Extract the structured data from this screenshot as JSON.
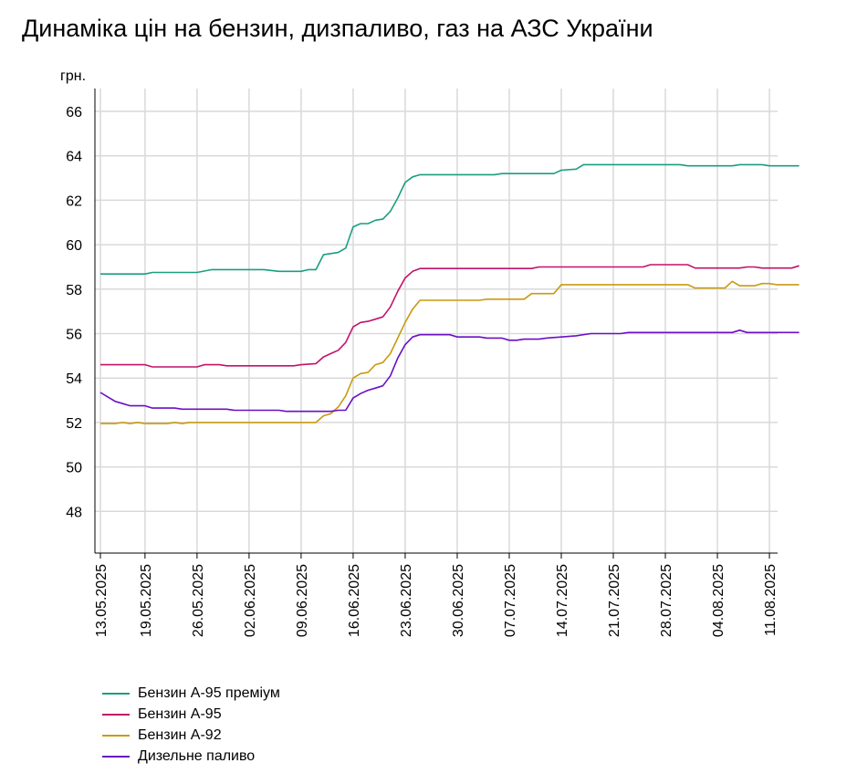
{
  "title": "Динаміка цін на бензин, дизпаливо, газ на АЗС України",
  "chart_data": {
    "type": "line",
    "title": "Динаміка цін на бензин, дизпаливо, газ на АЗС України",
    "ylabel": "грн.",
    "xlabel": "",
    "ylim": [
      46,
      67
    ],
    "yticks": [
      48,
      50,
      52,
      54,
      56,
      58,
      60,
      62,
      64,
      66
    ],
    "xlim": [
      "2025-05-13",
      "2025-08-16"
    ],
    "xticks": [
      "13.05.2025",
      "19.05.2025",
      "26.05.2025",
      "02.06.2025",
      "09.06.2025",
      "16.06.2025",
      "23.06.2025",
      "30.06.2025",
      "07.07.2025",
      "14.07.2025",
      "21.07.2025",
      "28.07.2025",
      "04.08.2025",
      "11.08.2025"
    ],
    "grid": true,
    "legend": "bottom-left",
    "series": [
      {
        "name": "Бензин А-95 преміум",
        "color": "#1a9e80",
        "points": [
          [
            "2025-05-13",
            58.68
          ],
          [
            "2025-05-19",
            58.68
          ],
          [
            "2025-05-20",
            58.75
          ],
          [
            "2025-05-26",
            58.75
          ],
          [
            "2025-05-28",
            58.88
          ],
          [
            "2025-06-04",
            58.88
          ],
          [
            "2025-06-06",
            58.8
          ],
          [
            "2025-06-09",
            58.8
          ],
          [
            "2025-06-10",
            58.88
          ],
          [
            "2025-06-11",
            58.88
          ],
          [
            "2025-06-12",
            59.55
          ],
          [
            "2025-06-13",
            59.6
          ],
          [
            "2025-06-14",
            59.65
          ],
          [
            "2025-06-15",
            59.85
          ],
          [
            "2025-06-16",
            60.8
          ],
          [
            "2025-06-17",
            60.95
          ],
          [
            "2025-06-18",
            60.95
          ],
          [
            "2025-06-19",
            61.1
          ],
          [
            "2025-06-20",
            61.15
          ],
          [
            "2025-06-21",
            61.5
          ],
          [
            "2025-06-22",
            62.1
          ],
          [
            "2025-06-23",
            62.8
          ],
          [
            "2025-06-24",
            63.05
          ],
          [
            "2025-06-25",
            63.15
          ],
          [
            "2025-07-05",
            63.15
          ],
          [
            "2025-07-06",
            63.2
          ],
          [
            "2025-07-13",
            63.2
          ],
          [
            "2025-07-14",
            63.35
          ],
          [
            "2025-07-16",
            63.4
          ],
          [
            "2025-07-17",
            63.6
          ],
          [
            "2025-07-30",
            63.6
          ],
          [
            "2025-07-31",
            63.55
          ],
          [
            "2025-08-06",
            63.55
          ],
          [
            "2025-08-07",
            63.6
          ],
          [
            "2025-08-10",
            63.6
          ],
          [
            "2025-08-11",
            63.55
          ],
          [
            "2025-08-15",
            63.55
          ]
        ]
      },
      {
        "name": "Бензин А-95",
        "color": "#c2126a",
        "points": [
          [
            "2025-05-13",
            54.6
          ],
          [
            "2025-05-19",
            54.6
          ],
          [
            "2025-05-20",
            54.5
          ],
          [
            "2025-05-26",
            54.5
          ],
          [
            "2025-05-27",
            54.6
          ],
          [
            "2025-05-29",
            54.6
          ],
          [
            "2025-05-30",
            54.55
          ],
          [
            "2025-06-08",
            54.55
          ],
          [
            "2025-06-09",
            54.6
          ],
          [
            "2025-06-11",
            54.65
          ],
          [
            "2025-06-12",
            54.95
          ],
          [
            "2025-06-13",
            55.1
          ],
          [
            "2025-06-14",
            55.25
          ],
          [
            "2025-06-15",
            55.6
          ],
          [
            "2025-06-16",
            56.3
          ],
          [
            "2025-06-17",
            56.5
          ],
          [
            "2025-06-18",
            56.55
          ],
          [
            "2025-06-19",
            56.65
          ],
          [
            "2025-06-20",
            56.75
          ],
          [
            "2025-06-21",
            57.2
          ],
          [
            "2025-06-22",
            57.9
          ],
          [
            "2025-06-23",
            58.5
          ],
          [
            "2025-06-24",
            58.8
          ],
          [
            "2025-06-25",
            58.93
          ],
          [
            "2025-07-10",
            58.93
          ],
          [
            "2025-07-11",
            59.0
          ],
          [
            "2025-07-25",
            59.0
          ],
          [
            "2025-07-26",
            59.1
          ],
          [
            "2025-07-31",
            59.1
          ],
          [
            "2025-08-01",
            58.95
          ],
          [
            "2025-08-07",
            58.95
          ],
          [
            "2025-08-08",
            59.0
          ],
          [
            "2025-08-09",
            59.0
          ],
          [
            "2025-08-10",
            58.95
          ],
          [
            "2025-08-14",
            58.95
          ],
          [
            "2025-08-15",
            59.05
          ]
        ]
      },
      {
        "name": "Бензин А-92",
        "color": "#c99a12",
        "points": [
          [
            "2025-05-13",
            51.95
          ],
          [
            "2025-05-15",
            51.95
          ],
          [
            "2025-05-16",
            52.0
          ],
          [
            "2025-05-17",
            51.95
          ],
          [
            "2025-05-18",
            52.0
          ],
          [
            "2025-05-19",
            51.95
          ],
          [
            "2025-05-22",
            51.95
          ],
          [
            "2025-05-23",
            52.0
          ],
          [
            "2025-05-24",
            51.95
          ],
          [
            "2025-05-25",
            52.0
          ],
          [
            "2025-06-11",
            52.0
          ],
          [
            "2025-06-12",
            52.3
          ],
          [
            "2025-06-13",
            52.4
          ],
          [
            "2025-06-14",
            52.7
          ],
          [
            "2025-06-15",
            53.2
          ],
          [
            "2025-06-16",
            54.0
          ],
          [
            "2025-06-17",
            54.2
          ],
          [
            "2025-06-18",
            54.25
          ],
          [
            "2025-06-19",
            54.6
          ],
          [
            "2025-06-20",
            54.7
          ],
          [
            "2025-06-21",
            55.1
          ],
          [
            "2025-06-22",
            55.8
          ],
          [
            "2025-06-23",
            56.5
          ],
          [
            "2025-06-24",
            57.1
          ],
          [
            "2025-06-25",
            57.5
          ],
          [
            "2025-07-03",
            57.5
          ],
          [
            "2025-07-04",
            57.55
          ],
          [
            "2025-07-09",
            57.55
          ],
          [
            "2025-07-10",
            57.8
          ],
          [
            "2025-07-13",
            57.8
          ],
          [
            "2025-07-14",
            58.2
          ],
          [
            "2025-07-31",
            58.2
          ],
          [
            "2025-08-01",
            58.05
          ],
          [
            "2025-08-05",
            58.05
          ],
          [
            "2025-08-06",
            58.35
          ],
          [
            "2025-08-07",
            58.15
          ],
          [
            "2025-08-09",
            58.15
          ],
          [
            "2025-08-10",
            58.25
          ],
          [
            "2025-08-11",
            58.25
          ],
          [
            "2025-08-12",
            58.2
          ],
          [
            "2025-08-15",
            58.2
          ]
        ]
      },
      {
        "name": "Дизельне паливо",
        "color": "#6a0fc4",
        "points": [
          [
            "2025-05-13",
            53.35
          ],
          [
            "2025-05-14",
            53.15
          ],
          [
            "2025-05-15",
            52.95
          ],
          [
            "2025-05-16",
            52.85
          ],
          [
            "2025-05-17",
            52.75
          ],
          [
            "2025-05-19",
            52.75
          ],
          [
            "2025-05-20",
            52.65
          ],
          [
            "2025-05-23",
            52.65
          ],
          [
            "2025-05-24",
            52.6
          ],
          [
            "2025-05-30",
            52.6
          ],
          [
            "2025-05-31",
            52.55
          ],
          [
            "2025-06-06",
            52.55
          ],
          [
            "2025-06-07",
            52.5
          ],
          [
            "2025-06-13",
            52.5
          ],
          [
            "2025-06-14",
            52.55
          ],
          [
            "2025-06-15",
            52.55
          ],
          [
            "2025-06-16",
            53.1
          ],
          [
            "2025-06-17",
            53.3
          ],
          [
            "2025-06-18",
            53.45
          ],
          [
            "2025-06-19",
            53.55
          ],
          [
            "2025-06-20",
            53.65
          ],
          [
            "2025-06-21",
            54.1
          ],
          [
            "2025-06-22",
            54.9
          ],
          [
            "2025-06-23",
            55.5
          ],
          [
            "2025-06-24",
            55.85
          ],
          [
            "2025-06-25",
            55.95
          ],
          [
            "2025-06-29",
            55.95
          ],
          [
            "2025-06-30",
            55.85
          ],
          [
            "2025-07-03",
            55.85
          ],
          [
            "2025-07-04",
            55.8
          ],
          [
            "2025-07-06",
            55.8
          ],
          [
            "2025-07-07",
            55.7
          ],
          [
            "2025-07-08",
            55.7
          ],
          [
            "2025-07-09",
            55.75
          ],
          [
            "2025-07-11",
            55.75
          ],
          [
            "2025-07-12",
            55.8
          ],
          [
            "2025-07-14",
            55.85
          ],
          [
            "2025-07-16",
            55.9
          ],
          [
            "2025-07-18",
            56.0
          ],
          [
            "2025-07-22",
            56.0
          ],
          [
            "2025-07-23",
            56.05
          ],
          [
            "2025-08-06",
            56.05
          ],
          [
            "2025-08-07",
            56.15
          ],
          [
            "2025-08-08",
            56.05
          ],
          [
            "2025-08-15",
            56.05
          ]
        ]
      }
    ]
  }
}
